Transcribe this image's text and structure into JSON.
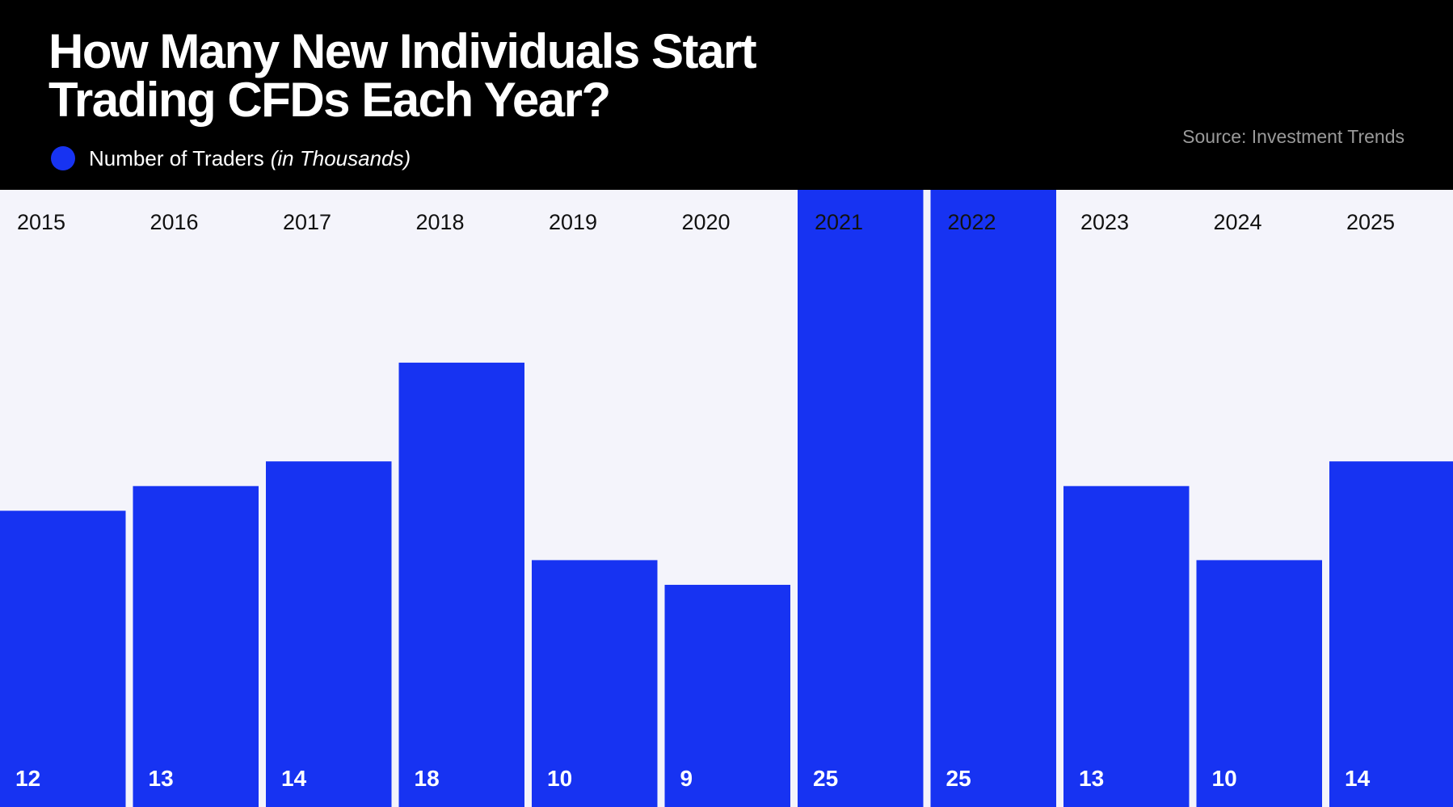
{
  "header": {
    "title_line1": "How Many New Individuals Start",
    "title_line2": "Trading CFDs Each Year?",
    "legend_label": "Number of Traders",
    "legend_note": "(in Thousands)",
    "source": "Source: Investment Trends"
  },
  "colors": {
    "bar": "#1733f2",
    "background": "#f4f4fb",
    "header": "#000000"
  },
  "chart_data": {
    "type": "bar",
    "title": "How Many New Individuals Start Trading CFDs Each Year?",
    "categories": [
      "2015",
      "2016",
      "2017",
      "2018",
      "2019",
      "2020",
      "2021",
      "2022",
      "2023",
      "2024",
      "2025"
    ],
    "series": [
      {
        "name": "Number of Traders (in Thousands)",
        "values": [
          12,
          13,
          14,
          18,
          10,
          9,
          25,
          25,
          13,
          10,
          14
        ]
      }
    ],
    "xlabel": "",
    "ylabel": "",
    "ylim": [
      0,
      25
    ],
    "grid": false,
    "legend": "top-left",
    "category_labels_position": "top",
    "value_labels_position": "bottom"
  }
}
